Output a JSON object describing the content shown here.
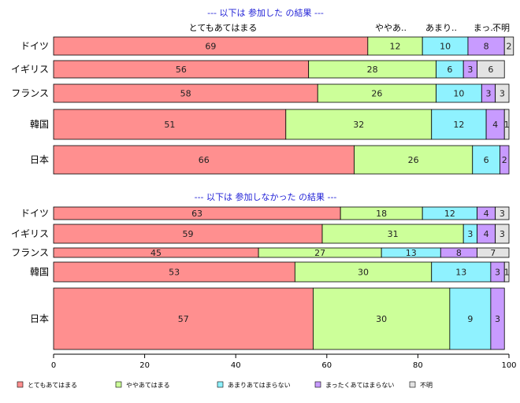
{
  "chart_data": {
    "type": "bar",
    "orientation": "horizontal",
    "stacked": true,
    "xlim": [
      0,
      100
    ],
    "xticks": [
      "0",
      "20",
      "40",
      "60",
      "80",
      "100"
    ],
    "grid": false,
    "legend_position": "bottom",
    "category_labels": [
      "とてもあてはまる",
      "ややあ..",
      "あまり..",
      "まっ..",
      "不明"
    ],
    "series": [
      {
        "name": "とてもあてはまる",
        "color": "#ff8f8f"
      },
      {
        "name": "ややあてはまる",
        "color": "#ccff99"
      },
      {
        "name": "あまりあてはまらない",
        "color": "#8ff2ff"
      },
      {
        "name": "まったくあてはまらない",
        "color": "#c89bff"
      },
      {
        "name": "不明",
        "color": "#e3e3e3"
      }
    ],
    "panels": [
      {
        "title": "--- 以下は 参加した の結果 ---",
        "rows": [
          {
            "label": "ドイツ",
            "values": [
              69,
              12,
              10,
              8,
              2
            ],
            "labels": [
              "69",
              "12",
              "10",
              "8",
              "2"
            ]
          },
          {
            "label": "イギリス",
            "values": [
              56,
              28,
              6,
              3,
              6
            ],
            "labels": [
              "56",
              "28",
              "6",
              "3",
              "6"
            ]
          },
          {
            "label": "フランス",
            "values": [
              58,
              26,
              10,
              3,
              3
            ],
            "labels": [
              "58",
              "26",
              "10",
              "3",
              "3"
            ]
          },
          {
            "label": "韓国",
            "values": [
              51,
              32,
              12,
              4,
              1
            ],
            "labels": [
              "51",
              "32",
              "12",
              "4",
              "1"
            ]
          },
          {
            "label": "日本",
            "values": [
              66,
              26,
              6,
              2,
              0
            ],
            "labels": [
              "66",
              "26",
              "6",
              "2",
              ""
            ]
          }
        ]
      },
      {
        "title": "--- 以下は 参加しなかった の結果 ---",
        "rows": [
          {
            "label": "ドイツ",
            "values": [
              63,
              18,
              12,
              4,
              3
            ],
            "labels": [
              "63",
              "18",
              "12",
              "4",
              "3"
            ]
          },
          {
            "label": "イギリス",
            "values": [
              59,
              31,
              3,
              4,
              3
            ],
            "labels": [
              "59",
              "31",
              "3",
              "4",
              "3"
            ]
          },
          {
            "label": "フランス",
            "values": [
              45,
              27,
              13,
              8,
              7
            ],
            "labels": [
              "45",
              "27",
              "13",
              "8",
              "7"
            ]
          },
          {
            "label": "韓国",
            "values": [
              53,
              30,
              13,
              3,
              1
            ],
            "labels": [
              "53",
              "30",
              "13",
              "3",
              "1"
            ]
          },
          {
            "label": "日本",
            "values": [
              57,
              30,
              9,
              3,
              0
            ],
            "labels": [
              "57",
              "30",
              "9",
              "3",
              ""
            ]
          }
        ]
      }
    ]
  }
}
